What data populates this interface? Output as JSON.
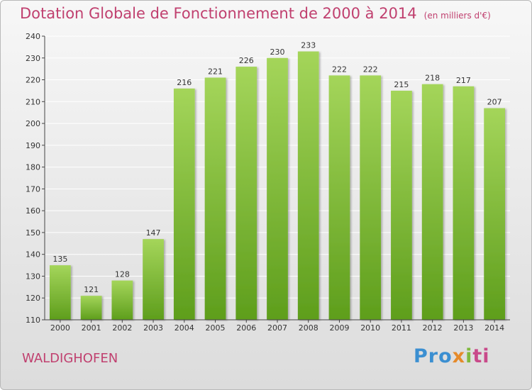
{
  "header": {
    "title": "Dotation Globale de Fonctionnement de 2000 à 2014",
    "unit": "(en milliers d'€)"
  },
  "footer": {
    "commune": "WALDIGHOFEN",
    "logo": {
      "p1": "Pro",
      "p2": "x",
      "p3": "i",
      "p4": "ti"
    }
  },
  "colors": {
    "title": "#c0406f",
    "bar_light": "#a4d55a",
    "bar_dark": "#5e9e1c",
    "axis": "#444444"
  },
  "chart_data": {
    "type": "bar",
    "title": "Dotation Globale de Fonctionnement de 2000 à 2014",
    "subtitle": "(en milliers d'€)",
    "xlabel": "",
    "ylabel": "",
    "categories": [
      "2000",
      "2001",
      "2002",
      "2003",
      "2004",
      "2005",
      "2006",
      "2007",
      "2008",
      "2009",
      "2010",
      "2011",
      "2012",
      "2013",
      "2014"
    ],
    "values": [
      135,
      121,
      128,
      147,
      216,
      221,
      226,
      230,
      233,
      222,
      222,
      215,
      218,
      217,
      207
    ],
    "ylim": [
      110,
      240
    ],
    "yticks": [
      110,
      120,
      130,
      140,
      150,
      160,
      170,
      180,
      190,
      200,
      210,
      220,
      230,
      240
    ],
    "grid": true,
    "legend": "none",
    "data_labels": true
  }
}
